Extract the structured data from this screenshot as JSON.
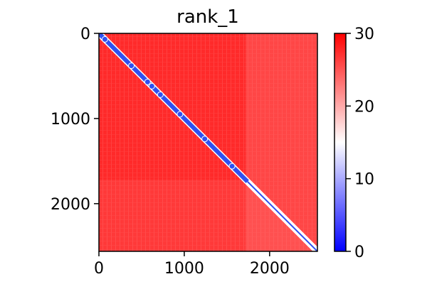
{
  "chart_data": {
    "type": "heatmap",
    "title": "rank_1",
    "xlabel": "",
    "ylabel": "",
    "x_ticks": [
      0,
      1000,
      2000
    ],
    "y_ticks": [
      0,
      1000,
      2000
    ],
    "xlim": [
      0,
      2560
    ],
    "ylim": [
      2560,
      0
    ],
    "n": 2560,
    "colorbar": {
      "ticks": [
        0,
        10,
        20,
        30
      ],
      "vmin": 0,
      "vmax": 30,
      "colormap": "bwr",
      "colors": {
        "low": "#0000ff",
        "mid": "#ffffff",
        "high": "#ff0000"
      }
    },
    "background_color": "#ff2020",
    "diagonal_color": "#3050f0",
    "lighter_region_start": 1720,
    "diagonal_blobs": [
      70,
      380,
      570,
      620,
      720,
      950,
      1240,
      1560
    ]
  }
}
